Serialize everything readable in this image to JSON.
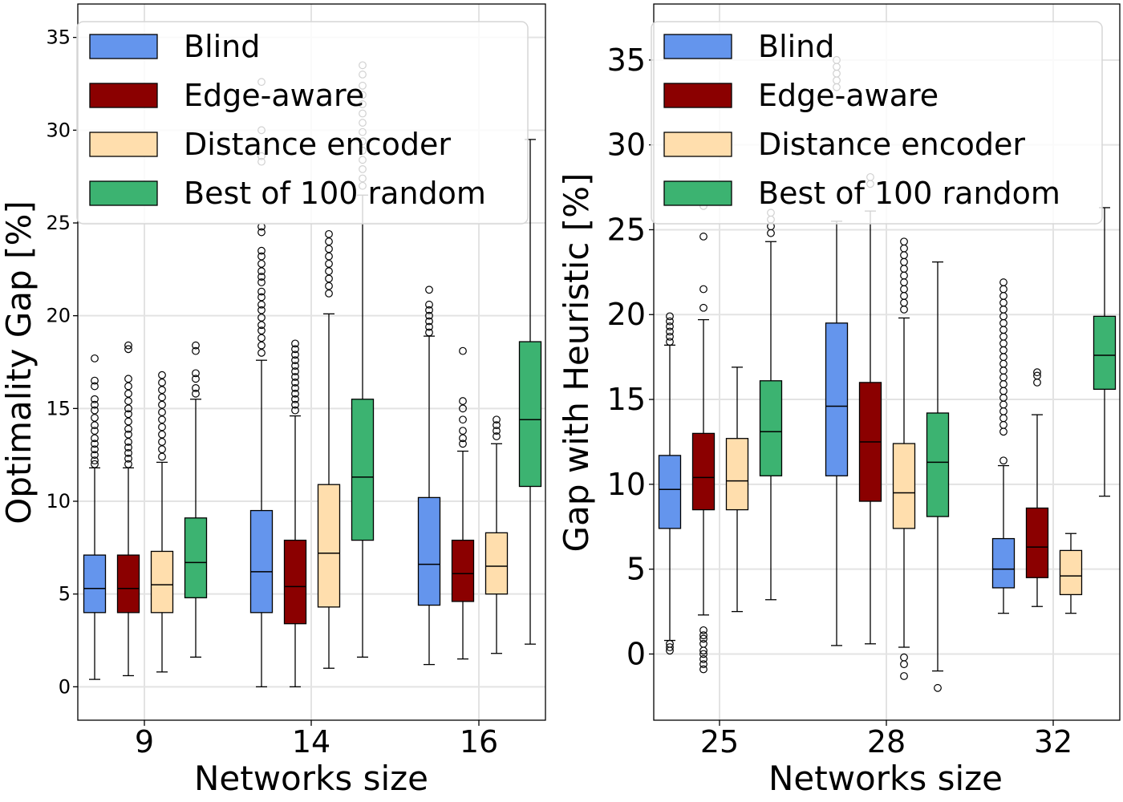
{
  "chart_data": [
    {
      "type": "box",
      "xlabel": "Networks size",
      "ylabel": "Optimality Gap [%]",
      "ylim": [
        -1.8,
        36.8
      ],
      "yticks": [
        0,
        5,
        10,
        15,
        20,
        25,
        30,
        35
      ],
      "categories": [
        "9",
        "14",
        "16"
      ],
      "grid": true,
      "legend_position": "top",
      "series": [
        {
          "name": "Blind",
          "color": "#6495ED",
          "boxes": [
            {
              "min": 0.4,
              "q1": 4.0,
              "median": 5.3,
              "q3": 7.1,
              "max": 11.8,
              "outliers": [
                17.7,
                16.5,
                16.2,
                15.5,
                15.2,
                14.9,
                14.5,
                14.1,
                13.8,
                13.4,
                13.1,
                12.8,
                12.5,
                12.2,
                12.0
              ]
            },
            {
              "min": 0.0,
              "q1": 4.0,
              "median": 6.2,
              "q3": 9.5,
              "max": 17.6,
              "outliers": [
                32.6,
                30.0,
                28.6,
                28.3,
                24.8,
                24.5,
                23.5,
                23.2,
                22.8,
                22.4,
                22.1,
                21.8,
                21.3,
                21.0,
                20.6,
                20.3,
                19.9,
                19.5,
                19.2,
                18.8,
                18.4,
                18.0
              ]
            },
            {
              "min": 1.2,
              "q1": 4.4,
              "median": 6.6,
              "q3": 10.2,
              "max": 18.9,
              "outliers": [
                21.4,
                20.6,
                20.3,
                20.0,
                19.7,
                19.4,
                19.1
              ]
            }
          ]
        },
        {
          "name": "Edge-aware",
          "color": "#8B0000",
          "boxes": [
            {
              "min": 0.6,
              "q1": 4.0,
              "median": 5.3,
              "q3": 7.1,
              "max": 11.8,
              "outliers": [
                18.4,
                18.2,
                16.6,
                16.2,
                15.8,
                15.4,
                15.0,
                14.7,
                14.3,
                13.9,
                13.6,
                13.2,
                12.9,
                12.6,
                12.3,
                12.0
              ]
            },
            {
              "min": 0.0,
              "q1": 3.4,
              "median": 5.4,
              "q3": 7.9,
              "max": 14.6,
              "outliers": [
                18.5,
                18.2,
                17.9,
                17.6,
                17.3,
                17.0,
                16.7,
                16.4,
                16.1,
                15.8,
                15.5,
                15.2,
                14.9
              ]
            },
            {
              "min": 1.5,
              "q1": 4.6,
              "median": 6.1,
              "q3": 7.9,
              "max": 12.7,
              "outliers": [
                18.1,
                15.4,
                15.0,
                14.4,
                13.8,
                13.4,
                13.1
              ]
            }
          ]
        },
        {
          "name": "Distance encoder",
          "color": "#FFDEAD",
          "boxes": [
            {
              "min": 0.8,
              "q1": 4.0,
              "median": 5.5,
              "q3": 7.3,
              "max": 12.1,
              "outliers": [
                16.8,
                16.4,
                16.0,
                15.6,
                15.2,
                14.8,
                14.4,
                14.0,
                13.6,
                13.2,
                12.8,
                12.4
              ]
            },
            {
              "min": 1.0,
              "q1": 4.3,
              "median": 7.2,
              "q3": 10.9,
              "max": 20.1,
              "outliers": [
                24.4,
                24.0,
                23.6,
                23.2,
                22.8,
                22.4,
                22.0,
                21.6,
                21.2
              ]
            },
            {
              "min": 1.8,
              "q1": 5.0,
              "median": 6.5,
              "q3": 8.3,
              "max": 13.1,
              "outliers": [
                14.4,
                14.1,
                13.8,
                13.5
              ]
            }
          ]
        },
        {
          "name": "Best of 100 random",
          "color": "#3CB371",
          "boxes": [
            {
              "min": 1.6,
              "q1": 4.8,
              "median": 6.7,
              "q3": 9.1,
              "max": 15.5,
              "outliers": [
                18.4,
                18.1,
                16.9,
                16.6,
                16.1,
                15.8
              ]
            },
            {
              "min": 1.6,
              "q1": 7.9,
              "median": 11.3,
              "q3": 15.5,
              "max": 26.5,
              "outliers": [
                33.5,
                33.0,
                32.4,
                31.9,
                31.4,
                30.9,
                30.4,
                29.9,
                29.4,
                28.9,
                28.4,
                27.9,
                27.4,
                27.0
              ]
            },
            {
              "min": 2.3,
              "q1": 10.8,
              "median": 14.4,
              "q3": 18.6,
              "max": 29.5,
              "outliers": []
            }
          ]
        }
      ],
      "legend": [
        "Blind",
        "Edge-aware",
        "Distance encoder",
        "Best of 100 random"
      ]
    },
    {
      "type": "box",
      "xlabel": "Networks size",
      "ylabel": "Gap with Heuristic [%]",
      "ylim": [
        -3.9,
        38.3
      ],
      "yticks": [
        0,
        5,
        10,
        15,
        20,
        25,
        30,
        35
      ],
      "categories": [
        "25",
        "28",
        "32"
      ],
      "grid": true,
      "legend_position": "top",
      "series": [
        {
          "name": "Blind",
          "color": "#6495ED",
          "boxes": [
            {
              "min": 0.8,
              "q1": 7.4,
              "median": 9.7,
              "q3": 11.7,
              "max": 18.2,
              "outliers": [
                19.9,
                19.6,
                19.3,
                19.0,
                18.7,
                18.4,
                0.6,
                0.4,
                0.2
              ]
            },
            {
              "min": 0.5,
              "q1": 10.5,
              "median": 14.6,
              "q3": 19.5,
              "max": 25.5,
              "outliers": [
                35.0,
                34.6,
                34.2,
                33.8,
                33.4
              ]
            },
            {
              "min": 2.4,
              "q1": 3.9,
              "median": 5.0,
              "q3": 6.8,
              "max": 11.1,
              "outliers": [
                21.9,
                21.5,
                21.1,
                20.7,
                20.3,
                19.9,
                19.5,
                19.1,
                18.7,
                18.3,
                17.9,
                17.5,
                17.1,
                16.7,
                16.3,
                15.9,
                15.5,
                15.1,
                14.7,
                14.3,
                13.9,
                13.5,
                13.1,
                11.4
              ]
            }
          ]
        },
        {
          "name": "Edge-aware",
          "color": "#8B0000",
          "boxes": [
            {
              "min": 2.3,
              "q1": 8.5,
              "median": 10.4,
              "q3": 13.0,
              "max": 19.7,
              "outliers": [
                26.4,
                24.6,
                21.5,
                20.4,
                1.4,
                1.1,
                0.9,
                0.6,
                0.2,
                0.0,
                -0.3,
                -0.6,
                -0.9
              ]
            },
            {
              "min": 0.6,
              "q1": 9.0,
              "median": 12.5,
              "q3": 16.0,
              "max": 26.1,
              "outliers": [
                28.1,
                27.7
              ]
            },
            {
              "min": 2.8,
              "q1": 4.5,
              "median": 6.3,
              "q3": 8.6,
              "max": 14.1,
              "outliers": [
                16.6,
                16.4,
                16.0
              ]
            }
          ]
        },
        {
          "name": "Distance encoder",
          "color": "#FFDEAD",
          "boxes": [
            {
              "min": 2.5,
              "q1": 8.5,
              "median": 10.2,
              "q3": 12.7,
              "max": 16.9,
              "outliers": []
            },
            {
              "min": 0.4,
              "q1": 7.4,
              "median": 9.5,
              "q3": 12.4,
              "max": 19.8,
              "outliers": [
                24.3,
                23.9,
                23.5,
                23.1,
                22.7,
                22.3,
                21.9,
                21.5,
                21.1,
                20.7,
                20.3,
                -0.2,
                -0.6,
                -1.3
              ]
            },
            {
              "min": 2.4,
              "q1": 3.5,
              "median": 4.6,
              "q3": 6.1,
              "max": 7.1,
              "outliers": []
            }
          ]
        },
        {
          "name": "Best of 100 random",
          "color": "#3CB371",
          "boxes": [
            {
              "min": 3.2,
              "q1": 10.5,
              "median": 13.1,
              "q3": 16.1,
              "max": 24.3,
              "outliers": [
                26.0,
                25.6,
                25.2,
                24.8
              ]
            },
            {
              "min": -1.0,
              "q1": 8.1,
              "median": 11.3,
              "q3": 14.2,
              "max": 23.1,
              "outliers": [
                -2.0
              ]
            },
            {
              "min": 9.3,
              "q1": 15.6,
              "median": 17.6,
              "q3": 19.9,
              "max": 26.3,
              "outliers": []
            }
          ]
        }
      ],
      "legend": [
        "Blind",
        "Edge-aware",
        "Distance encoder",
        "Best of 100 random"
      ]
    }
  ]
}
